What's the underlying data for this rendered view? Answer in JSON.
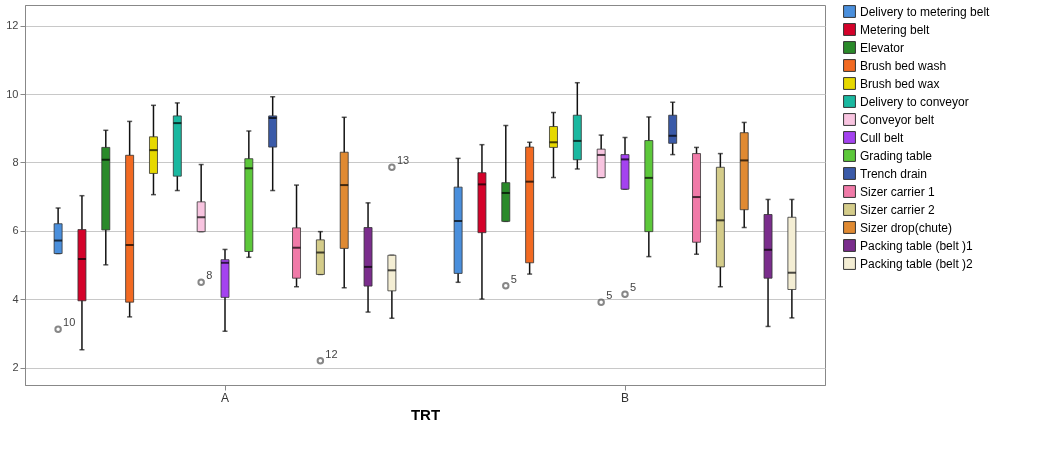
{
  "chart_data": {
    "type": "box",
    "xlabel": "TRT",
    "categories": [
      "A",
      "B"
    ],
    "ylim": [
      1.5,
      12.6
    ],
    "yticks": [
      2,
      4,
      6,
      8,
      10,
      12
    ],
    "grid": "y",
    "legend": "right",
    "series": [
      {
        "name": "Delivery to metering belt",
        "color": "#4a8fdc",
        "boxes": [
          {
            "low": 5.34,
            "q1": 5.34,
            "median": 5.72,
            "q3": 6.21,
            "high": 6.67,
            "outliers": [
              3.13
            ]
          },
          {
            "low": 4.5,
            "q1": 4.76,
            "median": 6.29,
            "q3": 7.28,
            "high": 8.12
          }
        ]
      },
      {
        "name": "Metering belt",
        "color": "#d4022a",
        "boxes": [
          {
            "low": 2.53,
            "q1": 3.96,
            "median": 5.18,
            "q3": 6.04,
            "high": 7.03
          },
          {
            "low": 4.01,
            "q1": 5.95,
            "median": 7.36,
            "q3": 7.7,
            "high": 8.52
          }
        ]
      },
      {
        "name": "Elevator",
        "color": "#2a8a2a",
        "boxes": [
          {
            "low": 5.01,
            "q1": 6.03,
            "median": 8.08,
            "q3": 8.44,
            "high": 8.94
          },
          {
            "low": 6.28,
            "q1": 6.28,
            "median": 7.11,
            "q3": 7.41,
            "high": 9.08,
            "outliers": [
              4.4
            ]
          }
        ]
      },
      {
        "name": "Brush bed wash",
        "color": "#f26a22",
        "boxes": [
          {
            "low": 3.49,
            "q1": 3.92,
            "median": 5.59,
            "q3": 8.21,
            "high": 9.2
          },
          {
            "low": 4.74,
            "q1": 5.07,
            "median": 7.44,
            "q3": 8.45,
            "high": 8.59
          }
        ]
      },
      {
        "name": "Brush bed wax",
        "color": "#e6d800",
        "boxes": [
          {
            "low": 7.06,
            "q1": 7.68,
            "median": 8.36,
            "q3": 8.75,
            "high": 9.67
          },
          {
            "low": 7.56,
            "q1": 8.44,
            "median": 8.59,
            "q3": 9.05,
            "high": 9.46
          }
        ]
      },
      {
        "name": "Delivery to conveyor",
        "color": "#1ab8a0",
        "boxes": [
          {
            "low": 7.18,
            "q1": 7.6,
            "median": 9.15,
            "q3": 9.36,
            "high": 9.74
          },
          {
            "low": 7.81,
            "q1": 8.08,
            "median": 8.63,
            "q3": 9.38,
            "high": 10.33
          }
        ]
      },
      {
        "name": "Conveyor belt",
        "color": "#f8c4e0",
        "boxes": [
          {
            "low": 5.98,
            "q1": 5.98,
            "median": 6.4,
            "q3": 6.85,
            "high": 7.94,
            "outliers": [
              4.5
            ]
          },
          {
            "low": 7.56,
            "q1": 7.56,
            "median": 8.22,
            "q3": 8.39,
            "high": 8.8,
            "outliers": [
              3.92
            ]
          }
        ]
      },
      {
        "name": "Cull belt",
        "color": "#a442f0",
        "boxes": [
          {
            "low": 3.07,
            "q1": 4.06,
            "median": 5.07,
            "q3": 5.16,
            "high": 5.46
          },
          {
            "low": 7.22,
            "q1": 7.22,
            "median": 8.09,
            "q3": 8.23,
            "high": 8.73,
            "outliers": [
              4.15
            ]
          }
        ]
      },
      {
        "name": "Grading table",
        "color": "#5cc83a",
        "boxes": [
          {
            "low": 5.23,
            "q1": 5.4,
            "median": 7.83,
            "q3": 8.11,
            "high": 8.92
          },
          {
            "low": 5.25,
            "q1": 5.98,
            "median": 7.55,
            "q3": 8.64,
            "high": 9.33
          }
        ]
      },
      {
        "name": "Trench drain",
        "color": "#3a5aa8",
        "boxes": [
          {
            "low": 7.18,
            "q1": 8.45,
            "median": 9.3,
            "q3": 9.36,
            "high": 9.92
          },
          {
            "low": 8.23,
            "q1": 8.56,
            "median": 8.78,
            "q3": 9.38,
            "high": 9.76
          }
        ]
      },
      {
        "name": "Sizer carrier 1",
        "color": "#f07aa8",
        "boxes": [
          {
            "low": 4.37,
            "q1": 4.62,
            "median": 5.51,
            "q3": 6.09,
            "high": 7.34
          },
          {
            "low": 5.32,
            "q1": 5.67,
            "median": 6.99,
            "q3": 8.26,
            "high": 8.44
          }
        ]
      },
      {
        "name": "Sizer carrier 2",
        "color": "#d4cc8a",
        "boxes": [
          {
            "low": 4.73,
            "q1": 4.73,
            "median": 5.37,
            "q3": 5.74,
            "high": 5.98,
            "outliers": [
              2.21
            ]
          },
          {
            "low": 4.37,
            "q1": 4.95,
            "median": 6.31,
            "q3": 7.86,
            "high": 8.26
          }
        ]
      },
      {
        "name": "Sizer drop(chute)",
        "color": "#e08a32",
        "boxes": [
          {
            "low": 4.34,
            "q1": 5.49,
            "median": 7.34,
            "q3": 8.3,
            "high": 9.32
          },
          {
            "low": 6.1,
            "q1": 6.62,
            "median": 8.06,
            "q3": 8.87,
            "high": 9.17
          }
        ]
      },
      {
        "name": "Packing table (belt )1",
        "color": "#7a2d8c",
        "boxes": [
          {
            "low": 3.63,
            "q1": 4.39,
            "median": 4.95,
            "q3": 6.1,
            "high": 6.82
          },
          {
            "low": 3.21,
            "q1": 4.62,
            "median": 5.45,
            "q3": 6.48,
            "high": 6.92
          }
        ]
      },
      {
        "name": "Packing table (belt )2",
        "color": "#f4eed4",
        "boxes": [
          {
            "low": 3.45,
            "q1": 4.25,
            "median": 4.85,
            "q3": 5.29,
            "high": 5.29,
            "outliers": [
              7.86
            ]
          },
          {
            "low": 3.46,
            "q1": 4.29,
            "median": 4.78,
            "q3": 6.4,
            "high": 6.92
          }
        ]
      }
    ],
    "annotations": [
      "10",
      "5",
      "8",
      "5",
      "5",
      "12",
      "13"
    ]
  }
}
